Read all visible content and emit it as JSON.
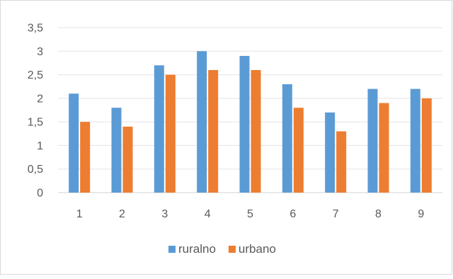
{
  "chart_data": {
    "type": "bar",
    "categories": [
      "1",
      "2",
      "3",
      "4",
      "5",
      "6",
      "7",
      "8",
      "9"
    ],
    "series": [
      {
        "name": "ruralno",
        "color": "#5b9bd5",
        "values": [
          2.1,
          1.8,
          2.7,
          3.0,
          2.9,
          2.3,
          1.7,
          2.2,
          2.2
        ]
      },
      {
        "name": "urbano",
        "color": "#ed7d31",
        "values": [
          1.5,
          1.4,
          2.5,
          2.6,
          2.6,
          1.8,
          1.3,
          1.9,
          2.0
        ]
      }
    ],
    "yticks": [
      "0",
      "0,5",
      "1",
      "1,5",
      "2",
      "2,5",
      "3",
      "3,5"
    ],
    "ylim": [
      0,
      3.5
    ],
    "ystep": 0.5,
    "grid": true,
    "legend_position": "bottom",
    "title": "",
    "xlabel": "",
    "ylabel": ""
  }
}
